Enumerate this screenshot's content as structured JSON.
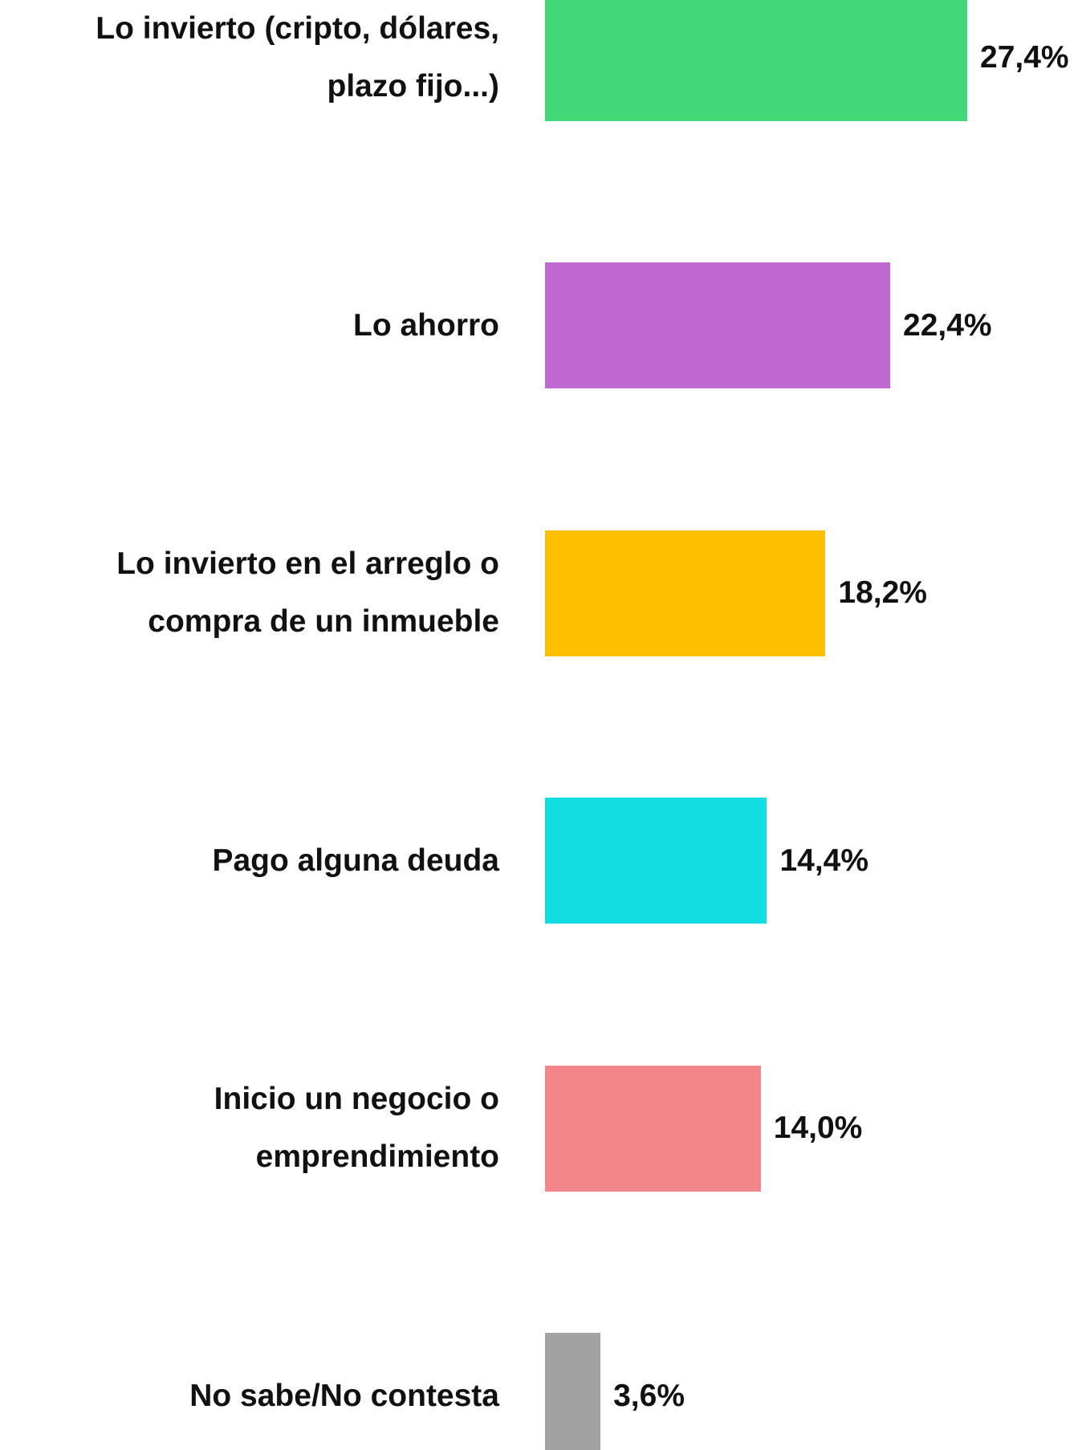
{
  "chart_data": {
    "type": "bar",
    "categories": [
      "Lo invierto (cripto, dólares,\nplazo fijo...)",
      "Lo ahorro",
      "Lo invierto en el arreglo o\ncompra de un inmueble",
      "Pago alguna deuda",
      "Inicio un negocio o\nemprendimiento",
      "No sabe/No contesta"
    ],
    "values": [
      27.4,
      22.4,
      18.2,
      14.4,
      14.0,
      3.6
    ],
    "value_labels": [
      "27,4%",
      "22,4%",
      "18,2%",
      "14,4%",
      "14,0%",
      "3,6%"
    ],
    "colors": [
      "#43d877",
      "#bf69d0",
      "#fdbf00",
      "#12dde0",
      "#f2868a",
      "#a2a2a2"
    ]
  }
}
